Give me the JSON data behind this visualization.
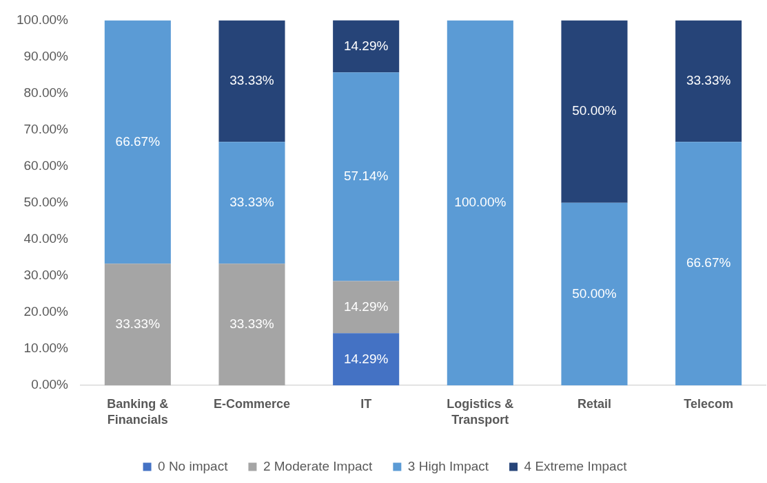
{
  "chart_data": {
    "type": "bar",
    "stacked": true,
    "categories": [
      "Banking & Financials",
      "E-Commerce",
      "IT",
      "Logistics & Transport",
      "Retail",
      "Telecom"
    ],
    "series": [
      {
        "name": "0 No impact",
        "color": "#4472c4",
        "values": [
          null,
          null,
          14.29,
          null,
          null,
          null
        ],
        "value_labels": [
          null,
          null,
          "14.29%",
          null,
          null,
          null
        ]
      },
      {
        "name": "2 Moderate Impact",
        "color": "#a5a5a5",
        "values": [
          33.33,
          33.33,
          14.29,
          null,
          null,
          null
        ],
        "value_labels": [
          "33.33%",
          "33.33%",
          "14.29%",
          null,
          null,
          null
        ]
      },
      {
        "name": "3 High Impact",
        "color": "#5b9bd5",
        "values": [
          66.67,
          33.33,
          57.14,
          100,
          50,
          66.67
        ],
        "value_labels": [
          "66.67%",
          "33.33%",
          "57.14%",
          "100.00%",
          "50.00%",
          "66.67%"
        ]
      },
      {
        "name": "4 Extreme Impact",
        "color": "#264478",
        "values": [
          null,
          33.33,
          14.29,
          null,
          50,
          33.33
        ],
        "value_labels": [
          null,
          "33.33%",
          "14.29%",
          null,
          "50.00%",
          "33.33%"
        ]
      }
    ],
    "ylim": [
      0,
      100
    ],
    "yticks": [
      {
        "value": 0,
        "label": "0.00%"
      },
      {
        "value": 10,
        "label": "10.00%"
      },
      {
        "value": 20,
        "label": "20.00%"
      },
      {
        "value": 30,
        "label": "30.00%"
      },
      {
        "value": 40,
        "label": "40.00%"
      },
      {
        "value": 50,
        "label": "50.00%"
      },
      {
        "value": 60,
        "label": "60.00%"
      },
      {
        "value": 70,
        "label": "70.00%"
      },
      {
        "value": 80,
        "label": "80.00%"
      },
      {
        "value": 90,
        "label": "90.00%"
      },
      {
        "value": 100,
        "label": "100.00%"
      }
    ],
    "grid": false,
    "legend": "bottom"
  }
}
